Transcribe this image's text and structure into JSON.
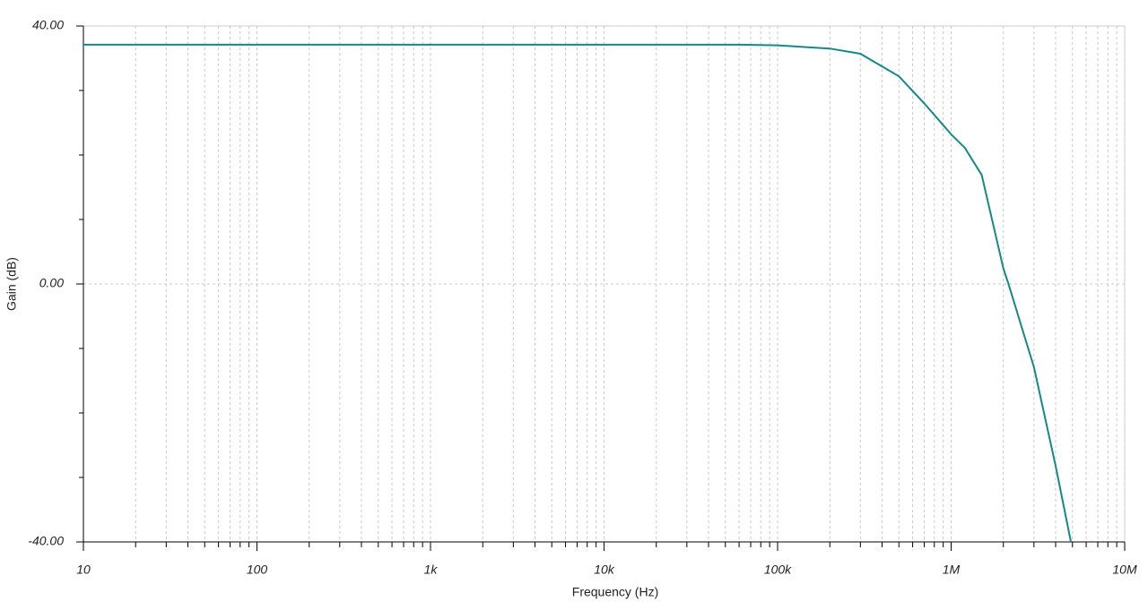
{
  "chart_data": {
    "type": "line",
    "x_label": "Frequency (Hz)",
    "y_label": "Gain (dB)",
    "x_log": true,
    "grid": true,
    "xlim": [
      10,
      10000000
    ],
    "xticks": [
      10,
      100,
      {
        "value": 1000,
        "label": "1k"
      },
      {
        "value": 10000,
        "label": "10k"
      },
      {
        "value": 100000,
        "label": "100k"
      },
      {
        "value": 1000000,
        "label": "1M"
      },
      {
        "value": 10000000,
        "label": "10M"
      }
    ],
    "ylim": [
      -40,
      40
    ],
    "yticks": [
      {
        "value": 40,
        "label": "40.00"
      },
      {
        "value": 0,
        "label": "0.00"
      },
      {
        "value": -40,
        "label": "-40.00"
      }
    ],
    "y_minor_ticks": [
      30,
      20,
      10,
      -10,
      -20,
      -30
    ],
    "series": [
      {
        "color": "#13898a",
        "x": [
          10,
          1000,
          10000,
          60000,
          100000,
          200000,
          300000,
          500000,
          700000,
          1000000,
          1200000,
          1500000,
          2000000,
          2140000,
          3000000,
          4000000,
          4900000
        ],
        "values": [
          37.1,
          37.1,
          37.1,
          37.1,
          37.0,
          36.5,
          35.7,
          32.2,
          28.0,
          23.2,
          21.1,
          16.9,
          2.4,
          0,
          -12.9,
          -28.2,
          -40
        ]
      }
    ]
  }
}
